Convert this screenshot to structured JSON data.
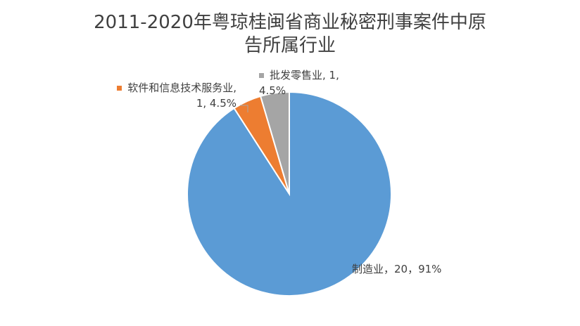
{
  "chart_data": {
    "type": "pie",
    "title": "2011-2020年粤琼桂闽省商业秘密刑事案件中原告所属行业",
    "values": [
      20,
      1,
      1
    ],
    "value_labels": [
      "制造业，20，91%",
      "软件和信息技术服务业, 1, 4.5%",
      "批发零售业, 1, 4.5%"
    ],
    "colors": [
      "#5b9bd5",
      "#ed7d31",
      "#a5a5a5"
    ]
  }
}
